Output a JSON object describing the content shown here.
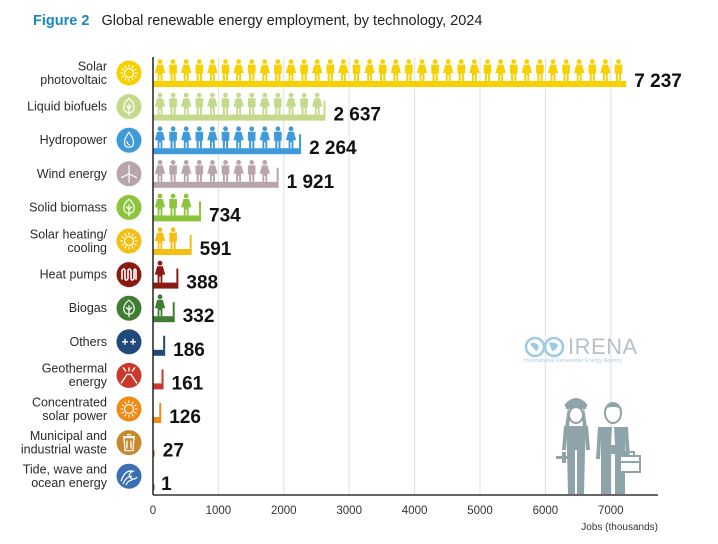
{
  "figure": {
    "label": "Figure 2",
    "title": "Global renewable energy employment, by technology, 2024"
  },
  "logo": {
    "name": "IRENA",
    "subtitle": "International Renewable Energy Agency"
  },
  "chart_data": {
    "type": "bar",
    "orientation": "horizontal",
    "title": "Global renewable energy employment, by technology, 2024",
    "xlabel": "Jobs (thousands)",
    "ylabel": "",
    "xlim": [
      0,
      7600
    ],
    "xticks": [
      0,
      1000,
      2000,
      3000,
      4000,
      5000,
      6000,
      7000
    ],
    "xtick_labels": [
      "0",
      "1000",
      "2000",
      "3000",
      "4000",
      "5000",
      "6000",
      "7000"
    ],
    "grid": true,
    "bar_style": "pictogram (alternating female/male worker figures on a base bar)",
    "categories": [
      {
        "label": [
          "Solar",
          "photovoltaic"
        ],
        "value": 7237,
        "value_label": "7 237",
        "color": "#f7d000",
        "icon": "sun-icon"
      },
      {
        "label": [
          "Liquid biofuels"
        ],
        "value": 2637,
        "value_label": "2 637",
        "color": "#c5d98a",
        "icon": "leaf-icon"
      },
      {
        "label": [
          "Hydropower"
        ],
        "value": 2264,
        "value_label": "2 264",
        "color": "#3e9ad8",
        "icon": "water-drop-icon"
      },
      {
        "label": [
          "Wind energy"
        ],
        "value": 1921,
        "value_label": "1 921",
        "color": "#b8a5ab",
        "icon": "wind-turbine-icon"
      },
      {
        "label": [
          "Solid biomass"
        ],
        "value": 734,
        "value_label": "734",
        "color": "#8cc43e",
        "icon": "leaf-icon"
      },
      {
        "label": [
          "Solar heating/",
          "cooling"
        ],
        "value": 591,
        "value_label": "591",
        "color": "#f5be13",
        "icon": "sun-icon"
      },
      {
        "label": [
          "Heat pumps"
        ],
        "value": 388,
        "value_label": "388",
        "color": "#8a1a12",
        "icon": "heat-coil-icon"
      },
      {
        "label": [
          "Biogas"
        ],
        "value": 332,
        "value_label": "332",
        "color": "#3f7d32",
        "icon": "leaf-icon"
      },
      {
        "label": [
          "Others"
        ],
        "value": 186,
        "value_label": "186",
        "color": "#1f4a7a",
        "icon": "plus-plus-icon"
      },
      {
        "label": [
          "Geothermal",
          "energy"
        ],
        "value": 161,
        "value_label": "161",
        "color": "#c9382a",
        "icon": "volcano-icon"
      },
      {
        "label": [
          "Concentrated",
          "solar power"
        ],
        "value": 126,
        "value_label": "126",
        "color": "#f08a12",
        "icon": "sun-icon"
      },
      {
        "label": [
          "Municipal and",
          "industrial waste"
        ],
        "value": 27,
        "value_label": "27",
        "color": "#c8892a",
        "icon": "trash-bin-icon"
      },
      {
        "label": [
          "Tide, wave and",
          "ocean energy"
        ],
        "value": 1,
        "value_label": "1",
        "color": "#3a6fb6",
        "icon": "wave-icon"
      }
    ]
  }
}
